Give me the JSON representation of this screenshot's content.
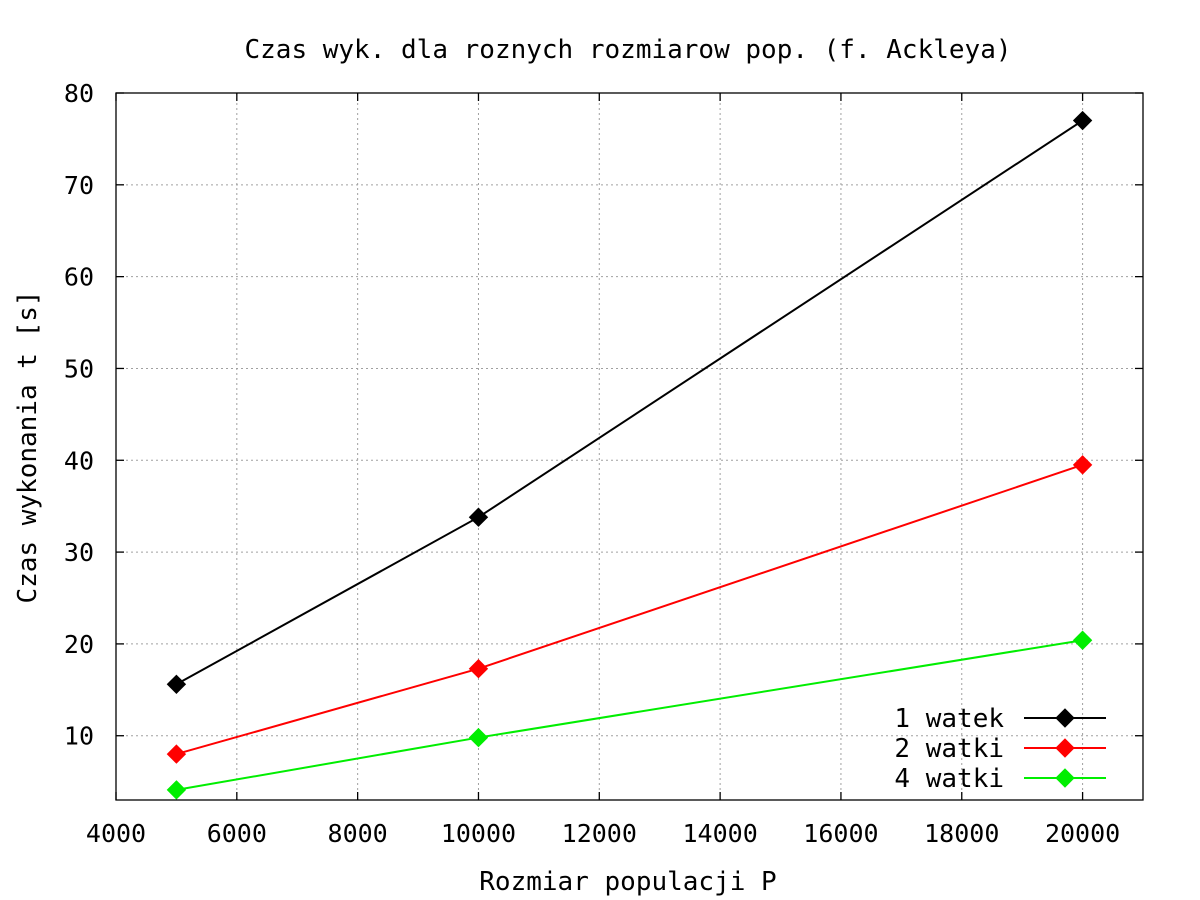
{
  "chart_data": {
    "type": "line",
    "title": "Czas wyk. dla roznych rozmiarow pop. (f. Ackleya)",
    "xlabel": "Rozmiar populacji P",
    "ylabel": "Czas wykonania t [s]",
    "xlim": [
      4000,
      21000
    ],
    "ylim": [
      3,
      80
    ],
    "xticks": [
      4000,
      6000,
      8000,
      10000,
      12000,
      14000,
      16000,
      18000,
      20000
    ],
    "yticks": [
      10,
      20,
      30,
      40,
      50,
      60,
      70,
      80
    ],
    "grid": true,
    "legend_position": "bottom-right",
    "x": [
      5000,
      10000,
      20000
    ],
    "series": [
      {
        "name": "1 watek",
        "color": "#000000",
        "marker": "diamond",
        "values": [
          15.6,
          33.8,
          77.0
        ]
      },
      {
        "name": "2 watki",
        "color": "#ff0000",
        "marker": "diamond",
        "values": [
          8.0,
          17.3,
          39.5
        ]
      },
      {
        "name": "4 watki",
        "color": "#00ee00",
        "marker": "diamond",
        "values": [
          4.1,
          9.8,
          20.4
        ]
      }
    ]
  }
}
